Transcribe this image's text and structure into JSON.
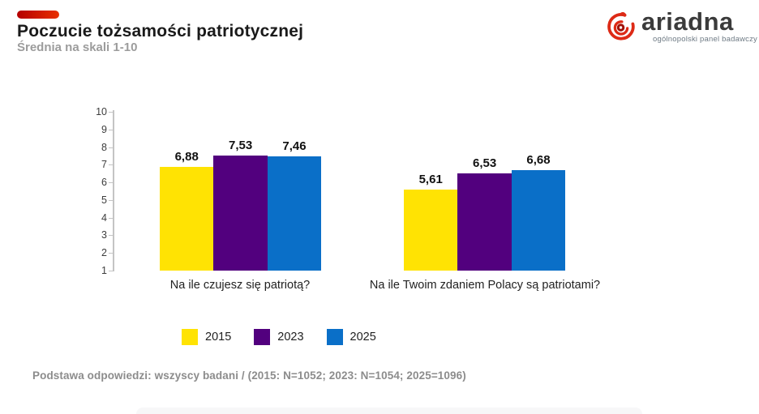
{
  "header": {
    "title": "Poczucie tożsamości patriotycznej",
    "subtitle": "Średnia na skali 1-10",
    "accent_color": "#c00000"
  },
  "logo": {
    "brand": "ariadna",
    "tagline": "ogólnopolski panel badawczy",
    "icon": "spiral-icon",
    "icon_color": "#dd2a16",
    "text_color": "#3b3b3b"
  },
  "chart_data": {
    "type": "bar",
    "title": "Poczucie tożsamości patriotycznej",
    "subtitle": "Średnia na skali 1-10",
    "categories": [
      "Na ile czujesz się patriotą?",
      "Na ile Twoim zdaniem Polacy są patriotami?"
    ],
    "series": [
      {
        "name": "2015",
        "color": "#ffe303",
        "values": [
          6.88,
          5.61
        ],
        "labels": [
          "6,88",
          "5,61"
        ]
      },
      {
        "name": "2023",
        "color": "#52007e",
        "values": [
          7.53,
          6.53
        ],
        "labels": [
          "7,53",
          "6,53"
        ]
      },
      {
        "name": "2025",
        "color": "#0a6fc8",
        "values": [
          7.46,
          6.68
        ],
        "labels": [
          "7,46",
          "6,68"
        ]
      }
    ],
    "ylim": [
      1,
      10
    ],
    "yticks": [
      1,
      2,
      3,
      4,
      5,
      6,
      7,
      8,
      9,
      10
    ],
    "grid": false,
    "legend_position": "bottom",
    "axis_color": "#c4c4c4",
    "value_label_decimal": "comma"
  },
  "footer": {
    "note": "Podstawa odpowiedzi: wszyscy badani / (2015: N=1052; 2023: N=1054; 2025=1096)"
  }
}
